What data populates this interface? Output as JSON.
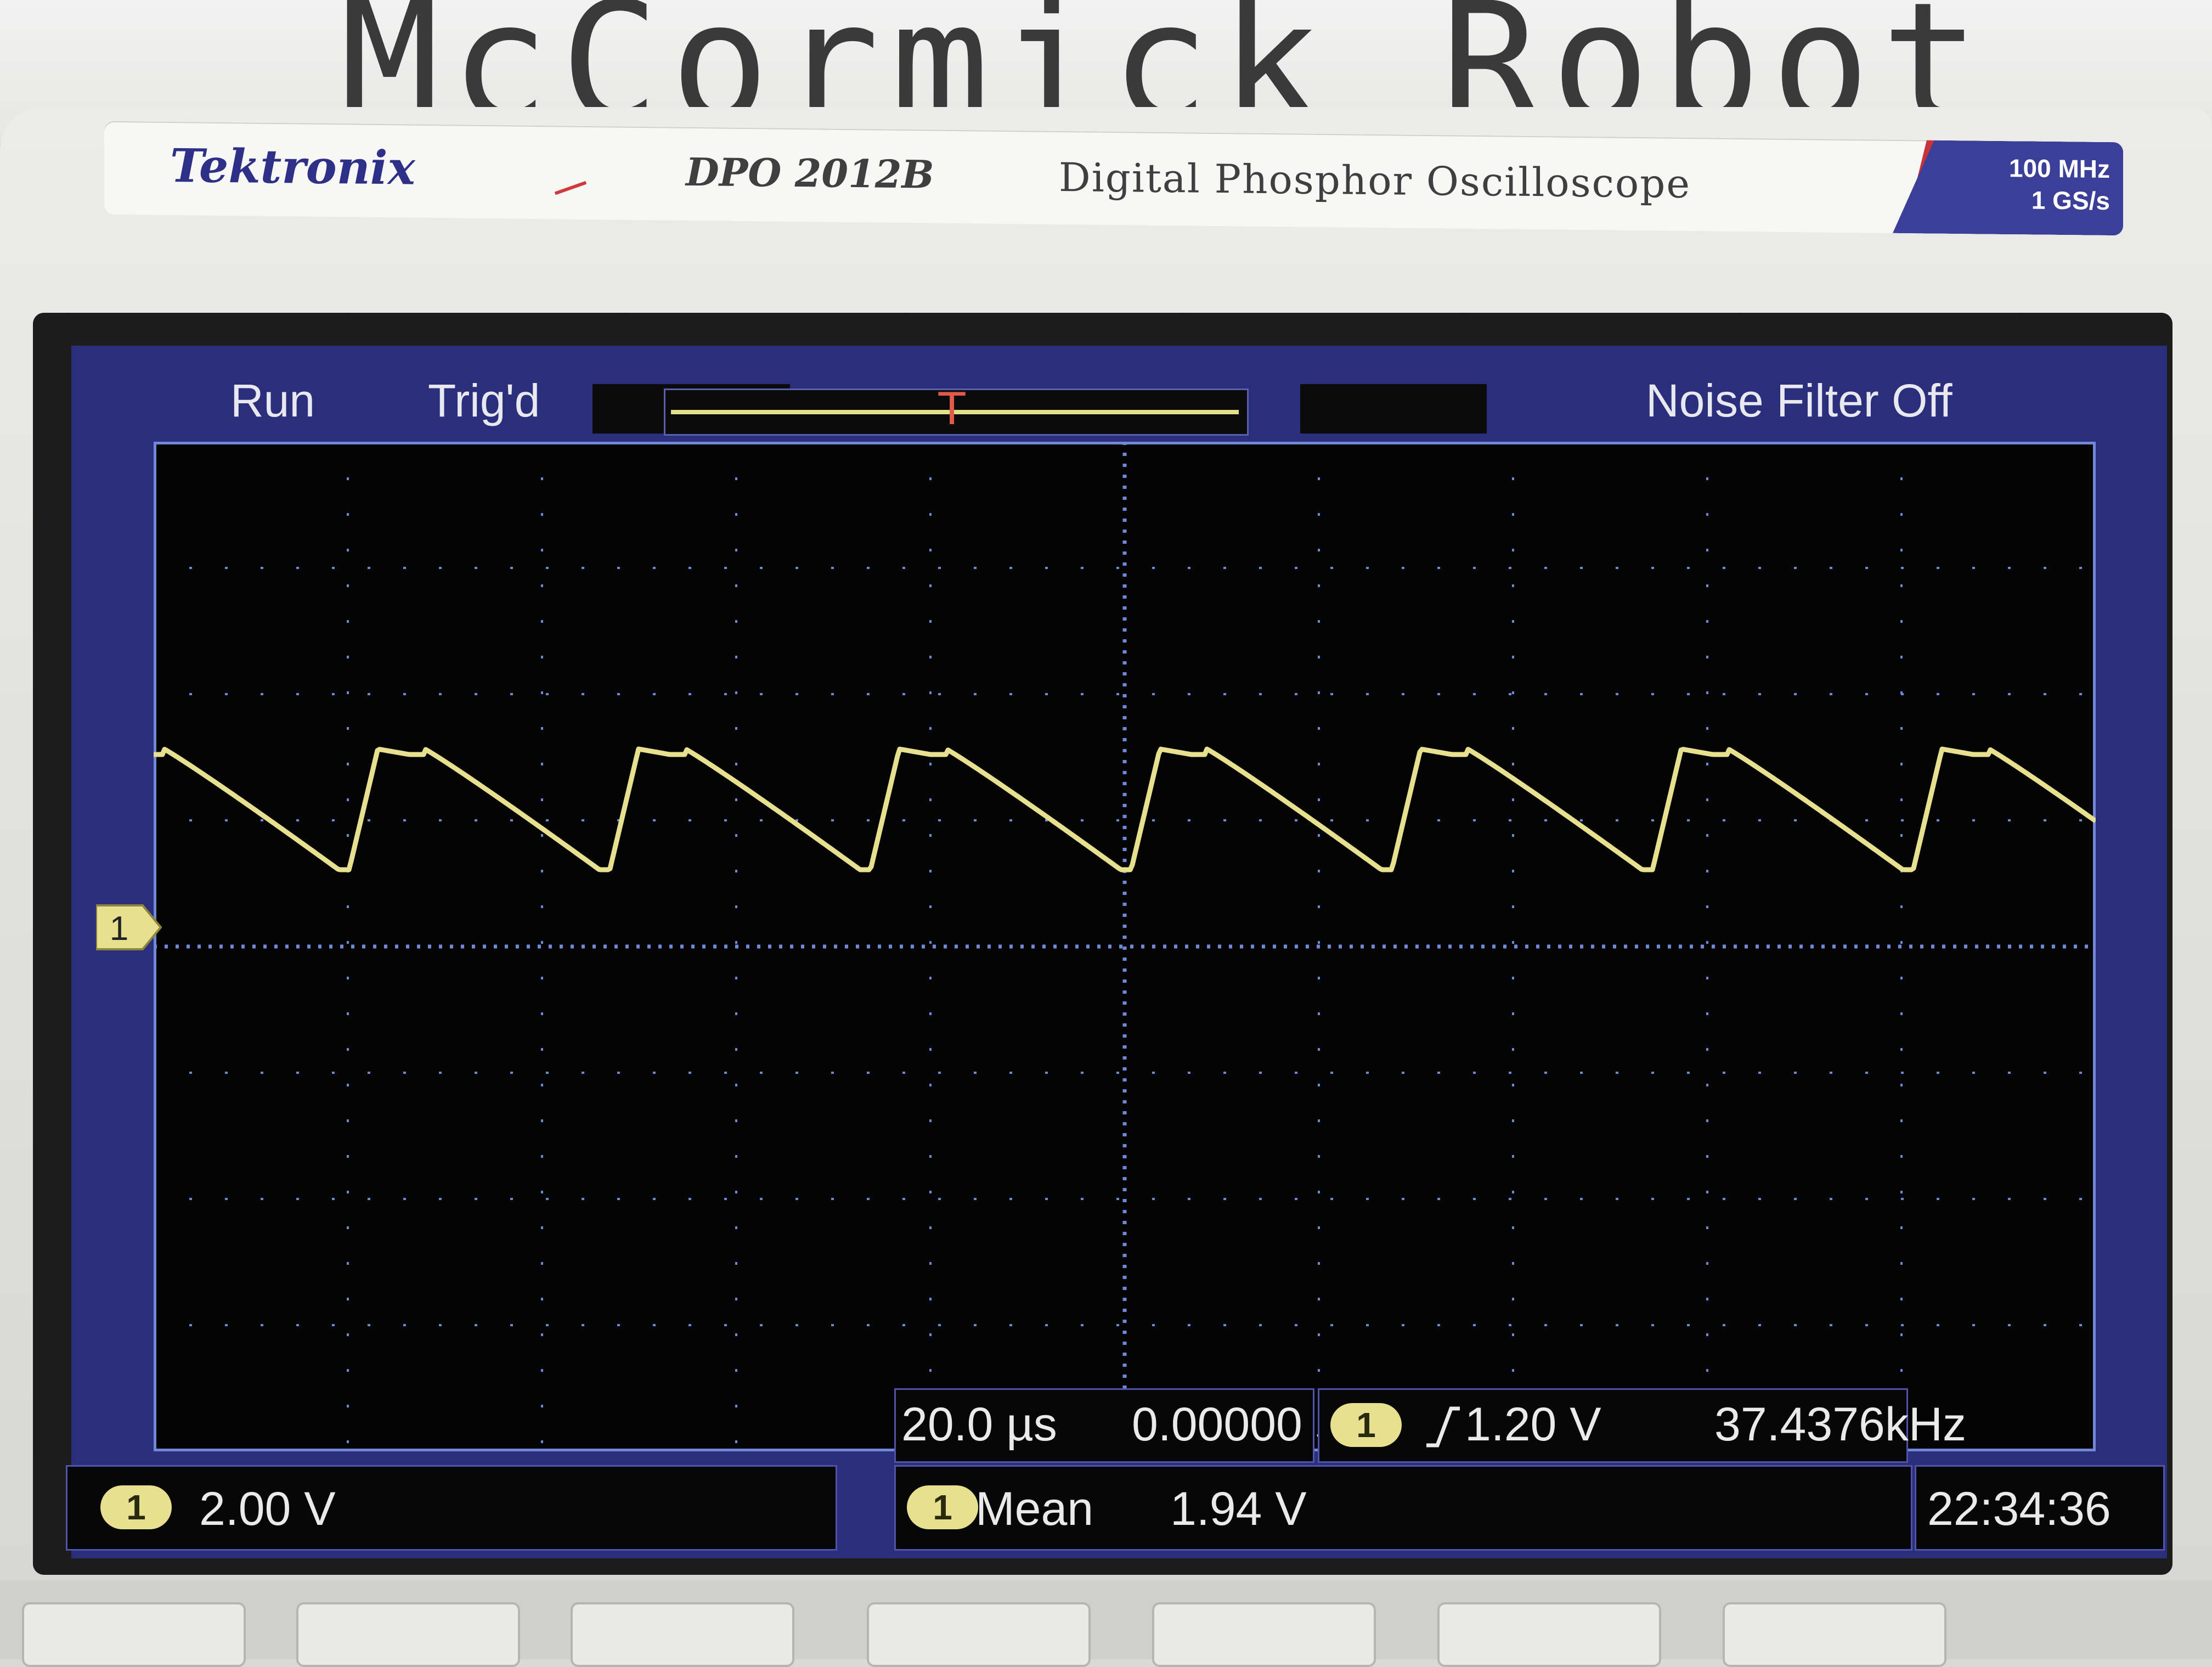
{
  "wall": {
    "text": "McCormick Robot"
  },
  "device": {
    "brand": "Tektronix",
    "model": "DPO 2012B",
    "description": "Digital Phosphor Oscilloscope",
    "spec_bandwidth": "100 MHz",
    "spec_sample_rate": "1 GS/s"
  },
  "status": {
    "acquisition": "Run",
    "trigger_state": "Trig'd",
    "noise_filter": "Noise Filter Off"
  },
  "channel1": {
    "marker_label": "1",
    "scale": "2.00 V",
    "color": "#e7e08e"
  },
  "timebase": {
    "per_div": "20.0 µs",
    "position": "0.00000 s"
  },
  "trigger": {
    "channel": "1",
    "edge_icon": "rising-edge-icon",
    "level": "1.20 V",
    "frequency": "37.4376kHz"
  },
  "measurement": {
    "channel": "1",
    "name": "Mean",
    "value": "1.94 V"
  },
  "clock": "22:34:36",
  "colors": {
    "frame_blue": "#2b2e7a",
    "grid": "#6f88d8",
    "trace": "#e7e08e",
    "trigger_marker": "#e25a4a"
  }
}
